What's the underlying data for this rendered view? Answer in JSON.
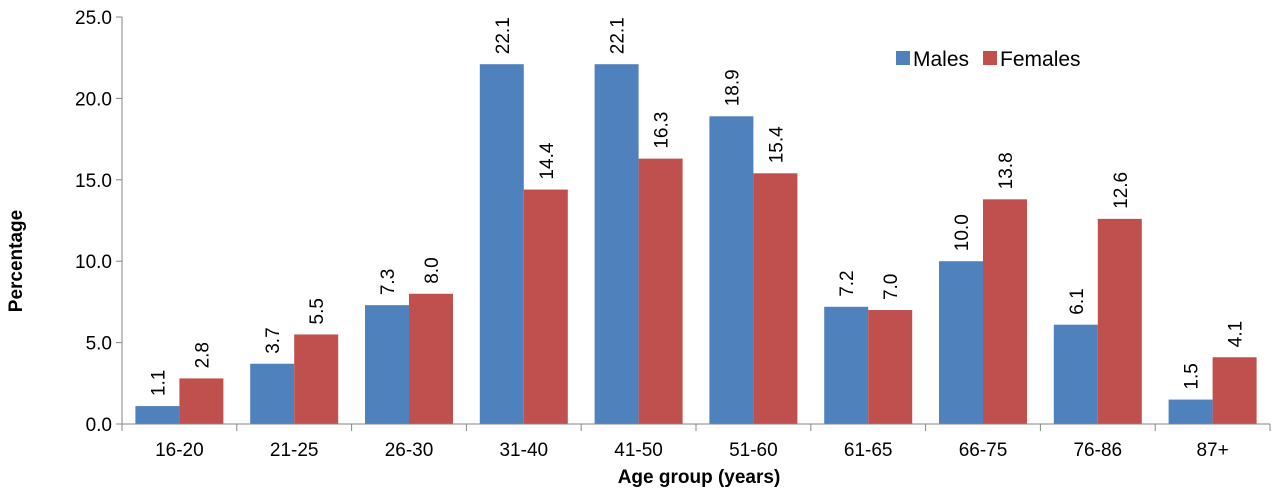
{
  "chart_data": {
    "type": "bar",
    "title": "",
    "xlabel": "Age group (years)",
    "ylabel": "Percentage",
    "ylim": [
      0,
      25
    ],
    "yticks": [
      0,
      5,
      10,
      15,
      20,
      25
    ],
    "ytick_labels": [
      "0.0",
      "5.0",
      "10.0",
      "15.0",
      "20.0",
      "25.0"
    ],
    "categories": [
      "16-20",
      "21-25",
      "26-30",
      "31-40",
      "41-50",
      "51-60",
      "61-65",
      "66-75",
      "76-86",
      "87+"
    ],
    "series": [
      {
        "name": "Males",
        "color": "#4F81BD",
        "values": [
          1.1,
          3.7,
          7.3,
          22.1,
          22.1,
          18.9,
          7.2,
          10.0,
          6.1,
          1.5
        ],
        "labels": [
          "1.1",
          "3.7",
          "7.3",
          "22.1",
          "22.1",
          "18.9",
          "7.2",
          "10.0",
          "6.1",
          "1.5"
        ]
      },
      {
        "name": "Females",
        "color": "#C0504D",
        "values": [
          2.8,
          5.5,
          8.0,
          14.4,
          16.3,
          15.4,
          7.0,
          13.8,
          12.6,
          4.1
        ],
        "labels": [
          "2.8",
          "5.5",
          "8.0",
          "14.4",
          "16.3",
          "15.4",
          "7.0",
          "13.8",
          "12.6",
          "4.1"
        ]
      }
    ],
    "grid": false,
    "legend_position": "top-right"
  }
}
